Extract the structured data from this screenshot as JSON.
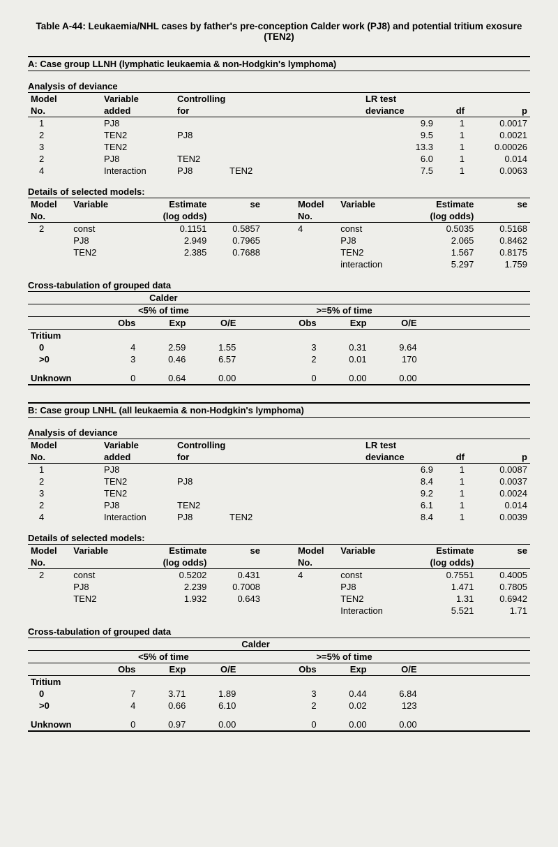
{
  "title": "Table A-44: Leukaemia/NHL cases by father's pre-conception Calder work (PJ8) and potential tritium exosure (TEN2)",
  "sectionA": "A: Case group LLNH (lymphatic leukaemia & non-Hodgkin's lymphoma)",
  "sectionB": "B: Case group LNHL (all leukaemia & non-Hodgkin's lymphoma)",
  "labels": {
    "aod": "Analysis of deviance",
    "modelNo": "Model No.",
    "model": "Model",
    "no": "No.",
    "varAdded": "Variable added",
    "variable": "Variable",
    "added": "added",
    "ctrlFor": "Controlling for",
    "controlling": "Controlling",
    "for": "for",
    "lrTest": "LR test",
    "deviance": "deviance",
    "df": "df",
    "p": "p",
    "details": "Details of selected models:",
    "est": "Estimate",
    "logodds": "(log odds)",
    "se": "se",
    "crosstab": "Cross-tabulation of grouped data",
    "calder": "Calder",
    "lt5": "<5% of time",
    "ge5": ">=5% of time",
    "obs": "Obs",
    "exp": "Exp",
    "oe": "O/E",
    "tritium": "Tritium",
    "unknown": "Unknown"
  },
  "A": {
    "aod": [
      {
        "no": "1",
        "var": "PJ8",
        "c1": "",
        "c2": "",
        "dev": "9.9",
        "df": "1",
        "p": "0.0017"
      },
      {
        "no": "2",
        "var": "TEN2",
        "c1": "PJ8",
        "c2": "",
        "dev": "9.5",
        "df": "1",
        "p": "0.0021"
      },
      {
        "no": "3",
        "var": "TEN2",
        "c1": "",
        "c2": "",
        "dev": "13.3",
        "df": "1",
        "p": "0.00026"
      },
      {
        "no": "2",
        "var": "PJ8",
        "c1": "TEN2",
        "c2": "",
        "dev": "6.0",
        "df": "1",
        "p": "0.014"
      },
      {
        "no": "4",
        "var": "Interaction",
        "c1": "PJ8",
        "c2": "TEN2",
        "dev": "7.5",
        "df": "1",
        "p": "0.0063"
      }
    ],
    "det2": [
      {
        "var": "const",
        "est": "0.1151",
        "se": "0.5857"
      },
      {
        "var": "PJ8",
        "est": "2.949",
        "se": "0.7965"
      },
      {
        "var": "TEN2",
        "est": "2.385",
        "se": "0.7688"
      }
    ],
    "det4": [
      {
        "var": "const",
        "est": "0.5035",
        "se": "0.5168"
      },
      {
        "var": "PJ8",
        "est": "2.065",
        "se": "0.8462"
      },
      {
        "var": "TEN2",
        "est": "1.567",
        "se": "0.8175"
      },
      {
        "var": "interaction",
        "est": "5.297",
        "se": "1.759"
      }
    ],
    "det2no": "2",
    "det4no": "4",
    "cross": [
      {
        "lab": "0",
        "o1": "4",
        "e1": "2.59",
        "r1": "1.55",
        "o2": "3",
        "e2": "0.31",
        "r2": "9.64"
      },
      {
        "lab": ">0",
        "o1": "3",
        "e1": "0.46",
        "r1": "6.57",
        "o2": "2",
        "e2": "0.01",
        "r2": "170"
      }
    ],
    "unk": {
      "o1": "0",
      "e1": "0.64",
      "r1": "0.00",
      "o2": "0",
      "e2": "0.00",
      "r2": "0.00"
    }
  },
  "B": {
    "aod": [
      {
        "no": "1",
        "var": "PJ8",
        "c1": "",
        "c2": "",
        "dev": "6.9",
        "df": "1",
        "p": "0.0087"
      },
      {
        "no": "2",
        "var": "TEN2",
        "c1": "PJ8",
        "c2": "",
        "dev": "8.4",
        "df": "1",
        "p": "0.0037"
      },
      {
        "no": "3",
        "var": "TEN2",
        "c1": "",
        "c2": "",
        "dev": "9.2",
        "df": "1",
        "p": "0.0024"
      },
      {
        "no": "2",
        "var": "PJ8",
        "c1": "TEN2",
        "c2": "",
        "dev": "6.1",
        "df": "1",
        "p": "0.014"
      },
      {
        "no": "4",
        "var": "Interaction",
        "c1": "PJ8",
        "c2": "TEN2",
        "dev": "8.4",
        "df": "1",
        "p": "0.0039"
      }
    ],
    "det2": [
      {
        "var": "const",
        "est": "0.5202",
        "se": "0.431"
      },
      {
        "var": "PJ8",
        "est": "2.239",
        "se": "0.7008"
      },
      {
        "var": "TEN2",
        "est": "1.932",
        "se": "0.643"
      }
    ],
    "det4": [
      {
        "var": "const",
        "est": "0.7551",
        "se": "0.4005"
      },
      {
        "var": "PJ8",
        "est": "1.471",
        "se": "0.7805"
      },
      {
        "var": "TEN2",
        "est": "1.31",
        "se": "0.6942"
      },
      {
        "var": "Interaction",
        "est": "5.521",
        "se": "1.71"
      }
    ],
    "det2no": "2",
    "det4no": "4",
    "cross": [
      {
        "lab": "0",
        "o1": "7",
        "e1": "3.71",
        "r1": "1.89",
        "o2": "3",
        "e2": "0.44",
        "r2": "6.84"
      },
      {
        "lab": ">0",
        "o1": "4",
        "e1": "0.66",
        "r1": "6.10",
        "o2": "2",
        "e2": "0.02",
        "r2": "123"
      }
    ],
    "unk": {
      "o1": "0",
      "e1": "0.97",
      "r1": "0.00",
      "o2": "0",
      "e2": "0.00",
      "r2": "0.00"
    }
  }
}
